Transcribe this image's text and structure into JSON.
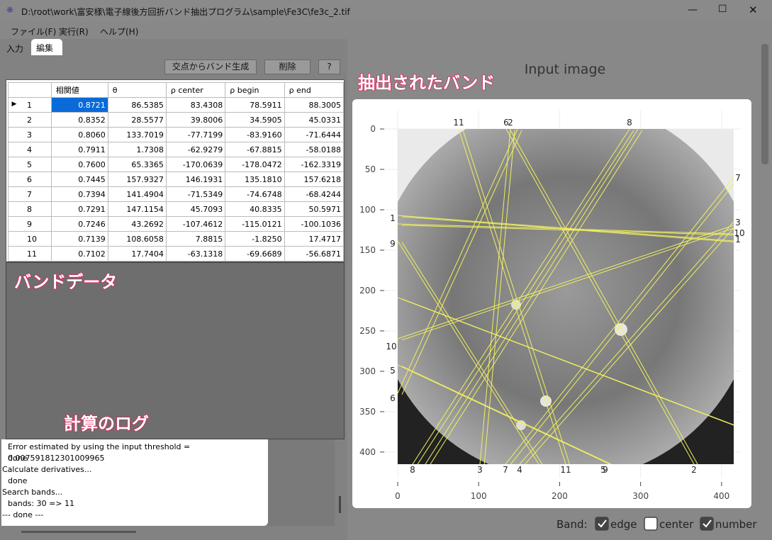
{
  "window": {
    "title": "D:\\root\\work\\富安様\\電子線後方回折バンド抽出プログラム\\sample\\Fe3C\\fe3c_2.tif"
  },
  "menu": [
    "ファイル(F)",
    "実行(R)",
    "ヘルプ(H)"
  ],
  "tabs": [
    "入力",
    "編集"
  ],
  "buttons": [
    "交点からバンド生成",
    "削除",
    "?"
  ],
  "table": {
    "headers": [
      "相関値",
      "θ",
      "ρ center",
      "ρ begin",
      "ρ end"
    ],
    "rows": [
      [
        "1",
        "0.8721",
        "86.5385",
        "83.4308",
        "78.5911",
        "88.3005"
      ],
      [
        "2",
        "0.8352",
        "28.5577",
        "39.8006",
        "34.5905",
        "45.0331"
      ],
      [
        "3",
        "0.8060",
        "133.7019",
        "-77.7199",
        "-83.9160",
        "-71.6444"
      ],
      [
        "4",
        "0.7911",
        "1.7308",
        "-62.9279",
        "-67.8815",
        "-58.0188"
      ],
      [
        "5",
        "0.7600",
        "65.3365",
        "-170.0639",
        "-178.0472",
        "-162.3319"
      ],
      [
        "6",
        "0.7445",
        "157.9327",
        "146.1931",
        "135.1810",
        "157.6218"
      ],
      [
        "7",
        "0.7394",
        "141.4904",
        "-71.5349",
        "-74.6748",
        "-68.4244"
      ],
      [
        "8",
        "0.7291",
        "147.1154",
        "45.7093",
        "40.8335",
        "50.5971"
      ],
      [
        "9",
        "0.7246",
        "43.2692",
        "-107.4612",
        "-115.0121",
        "-100.1036"
      ],
      [
        "10",
        "0.7139",
        "108.6058",
        "7.8815",
        "-1.8250",
        "17.4717"
      ],
      [
        "11",
        "0.7102",
        "17.7404",
        "-63.1318",
        "-69.6689",
        "-56.6871"
      ]
    ]
  },
  "log": [
    "Error estimated by using the input threshold = 0.007591812301009965",
    "done",
    "Calculate derivatives...",
    "done",
    "Search bands...",
    "bands: 30 => 11",
    "--- done ---"
  ],
  "annotations": [
    "抽出されたバンド",
    "バンドデータ",
    "計算のログ"
  ],
  "plot": {
    "title": "Input image",
    "xlim": [
      0,
      415
    ],
    "ylim": [
      0,
      415
    ],
    "xticks": [
      0,
      100,
      200,
      300,
      400
    ],
    "yticks": [
      0,
      50,
      100,
      150,
      200,
      250,
      300,
      350,
      400
    ],
    "band_labels": [
      "11",
      "6",
      "2",
      "8",
      "7",
      "3",
      "10",
      "1",
      "1",
      "9",
      "10",
      "5",
      "6",
      "8",
      "3",
      "7",
      "4",
      "11",
      "5",
      "9",
      "2"
    ]
  },
  "footer": {
    "label": "Band:",
    "options": [
      {
        "label": "edge",
        "checked": true
      },
      {
        "label": "center",
        "checked": false
      },
      {
        "label": "number",
        "checked": true
      }
    ]
  }
}
